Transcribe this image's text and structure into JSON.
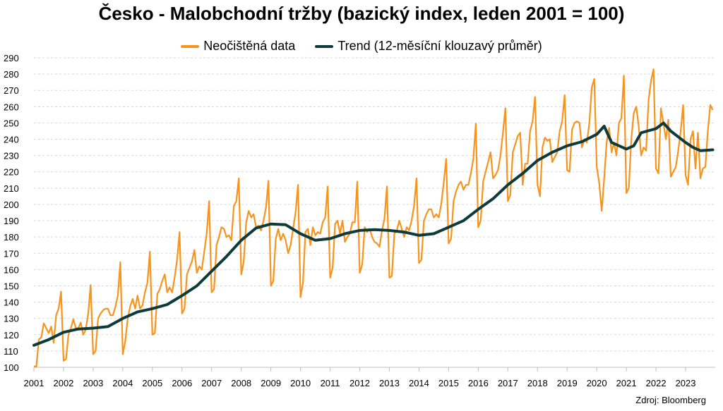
{
  "title": "Česko - Malobchodní tržby (bazický index, leden 2001 = 100)",
  "source": "Zdroj: Bloomberg",
  "colors": {
    "raw": "#F7941D",
    "trend": "#0D3A3A",
    "grid": "#D9D9D9",
    "axis": "#BFBFBF"
  },
  "chart_data": {
    "type": "line",
    "title": "Česko - Malobchodní tržby (bazický index, leden 2001 = 100)",
    "xlabel": "",
    "ylabel": "",
    "ylim": [
      100,
      290
    ],
    "xlim": [
      "2001-01",
      "2023-12"
    ],
    "grid": true,
    "legend_position": "top",
    "yticks": [
      100,
      110,
      120,
      130,
      140,
      150,
      160,
      170,
      180,
      190,
      200,
      210,
      220,
      230,
      240,
      250,
      260,
      270,
      280,
      290
    ],
    "xticks": [
      "2001",
      "2002",
      "2003",
      "2004",
      "2005",
      "2006",
      "2007",
      "2008",
      "2009",
      "2010",
      "2011",
      "2012",
      "2013",
      "2014",
      "2015",
      "2016",
      "2017",
      "2018",
      "2019",
      "2020",
      "2021",
      "2022",
      "2023"
    ],
    "series": [
      {
        "name": "Neočištěná data",
        "key": "raw",
        "x_start": "2001-01",
        "frequency": "monthly",
        "values": [
          100.5,
          100.5,
          117.0,
          118.5,
          127.0,
          124.0,
          121.0,
          125.0,
          115.0,
          132.0,
          136.0,
          146.5,
          104.0,
          105.0,
          120.0,
          124.0,
          129.5,
          124.0,
          124.0,
          127.5,
          120.0,
          123.0,
          133.0,
          150.5,
          108.0,
          110.0,
          130.0,
          133.0,
          135.0,
          136.0,
          136.0,
          132.0,
          132.0,
          137.0,
          144.0,
          164.5,
          108.0,
          116.0,
          130.0,
          137.5,
          142.0,
          136.0,
          144.0,
          136.0,
          138.0,
          146.0,
          152.0,
          171.0,
          120.0,
          121.0,
          145.0,
          148.0,
          153.0,
          157.0,
          146.0,
          149.0,
          146.0,
          155.0,
          166.0,
          183.0,
          133.0,
          136.0,
          157.0,
          161.0,
          165.0,
          172.0,
          158.0,
          162.0,
          160.0,
          171.0,
          182.0,
          202.0,
          146.0,
          148.0,
          175.0,
          180.0,
          186.0,
          185.0,
          180.0,
          181.0,
          178.0,
          199.0,
          202.0,
          216.0,
          157.0,
          165.0,
          189.0,
          196.0,
          192.0,
          194.0,
          186.0,
          187.0,
          184.0,
          190.0,
          198.0,
          214.5,
          150.0,
          153.0,
          179.0,
          185.0,
          178.0,
          182.0,
          178.0,
          170.0,
          175.0,
          185.0,
          195.0,
          212.0,
          143.0,
          152.0,
          183.0,
          185.0,
          175.0,
          186.0,
          181.0,
          183.0,
          182.0,
          189.0,
          192.0,
          211.0,
          155.0,
          161.0,
          188.0,
          190.0,
          182.0,
          190.0,
          177.0,
          180.0,
          182.0,
          189.0,
          189.0,
          214.0,
          158.0,
          163.0,
          186.0,
          183.0,
          185.0,
          180.0,
          177.0,
          176.0,
          174.0,
          184.0,
          191.0,
          211.0,
          155.0,
          156.0,
          182.0,
          184.0,
          190.0,
          185.0,
          180.0,
          186.0,
          184.0,
          190.0,
          199.0,
          216.0,
          164.0,
          166.0,
          190.0,
          194.0,
          197.0,
          197.0,
          192.0,
          194.0,
          192.0,
          200.0,
          213.0,
          228.0,
          176.0,
          179.0,
          202.0,
          208.0,
          212.0,
          214.0,
          209.0,
          212.0,
          212.0,
          219.0,
          228.0,
          249.5,
          186.0,
          190.0,
          214.0,
          220.0,
          226.0,
          232.0,
          216.0,
          218.0,
          221.0,
          230.0,
          244.0,
          259.0,
          202.0,
          206.0,
          232.0,
          237.0,
          242.0,
          244.0,
          212.0,
          225.0,
          225.0,
          245.0,
          251.0,
          266.0,
          212.0,
          205.0,
          235.0,
          241.0,
          239.0,
          240.0,
          226.0,
          229.0,
          232.0,
          245.0,
          251.0,
          267.0,
          221.0,
          220.0,
          246.0,
          250.0,
          251.0,
          250.0,
          235.0,
          240.0,
          238.0,
          250.0,
          272.0,
          277.0,
          223.0,
          213.0,
          196.0,
          216.0,
          238.0,
          247.0,
          232.0,
          238.0,
          230.0,
          250.0,
          253.0,
          279.0,
          207.0,
          210.0,
          240.0,
          256.0,
          260.0,
          248.0,
          230.0,
          235.0,
          233.0,
          264.0,
          276.0,
          283.0,
          222.0,
          219.0,
          259.0,
          250.0,
          240.0,
          252.0,
          217.0,
          220.0,
          223.0,
          233.0,
          245.0,
          261.0,
          218.0,
          212.0,
          240.0,
          245.0,
          222.0,
          244.0,
          216.0,
          222.0,
          223.0,
          245.0,
          261.0,
          258.0
        ]
      },
      {
        "name": "Trend (12-měsíční klouzavý průměr)",
        "key": "trend",
        "x": [
          "2001-01",
          "2001-07",
          "2002-01",
          "2002-07",
          "2003-01",
          "2003-07",
          "2004-01",
          "2004-07",
          "2005-01",
          "2005-07",
          "2006-01",
          "2006-07",
          "2007-01",
          "2007-07",
          "2008-01",
          "2008-07",
          "2009-01",
          "2009-07",
          "2010-01",
          "2010-07",
          "2011-01",
          "2011-07",
          "2012-01",
          "2012-07",
          "2013-01",
          "2013-07",
          "2014-01",
          "2014-07",
          "2015-01",
          "2015-07",
          "2016-01",
          "2016-07",
          "2017-01",
          "2017-07",
          "2018-01",
          "2018-07",
          "2019-01",
          "2019-07",
          "2020-01",
          "2020-04",
          "2020-07",
          "2021-01",
          "2021-04",
          "2021-07",
          "2022-01",
          "2022-04",
          "2022-07",
          "2023-01",
          "2023-04",
          "2023-07",
          "2023-12"
        ],
        "values": [
          113.5,
          117.0,
          121.5,
          123.5,
          124.0,
          125.0,
          130.0,
          134.0,
          136.0,
          138.5,
          144.0,
          150.0,
          159.0,
          168.0,
          178.0,
          185.5,
          188.0,
          187.5,
          182.0,
          178.0,
          179.0,
          182.0,
          184.0,
          184.5,
          184.0,
          183.0,
          181.0,
          182.0,
          186.0,
          190.0,
          197.0,
          203.5,
          212.0,
          219.0,
          227.0,
          232.0,
          236.0,
          238.5,
          243.0,
          248.0,
          238.0,
          234.0,
          236.0,
          244.0,
          246.5,
          250.0,
          245.0,
          238.0,
          235.0,
          233.0,
          233.5
        ]
      }
    ]
  },
  "legend": {
    "raw_label": "Neočištěná data",
    "trend_label": "Trend (12-měsíční klouzavý průměr)"
  }
}
